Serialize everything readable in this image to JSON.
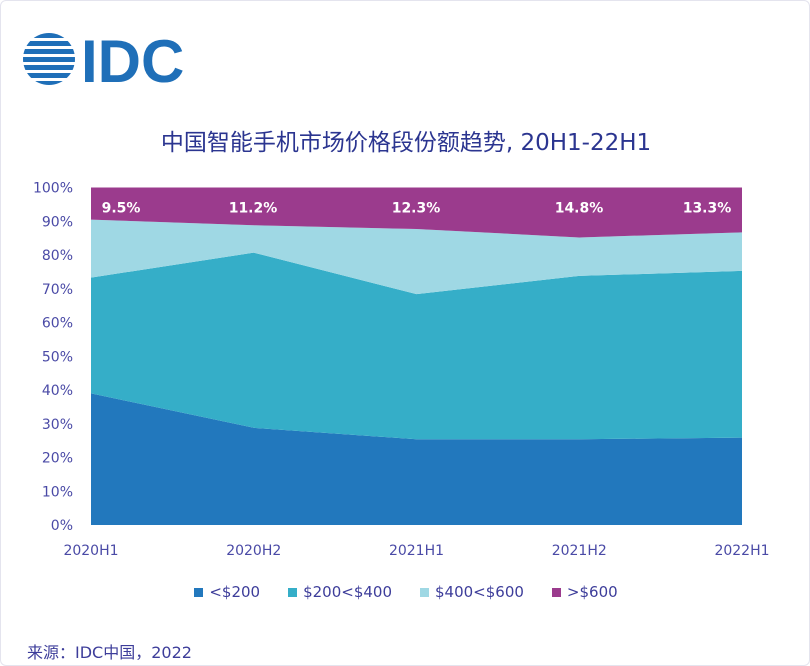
{
  "logo_text": "IDC",
  "chart_data": {
    "type": "area",
    "stacked": true,
    "title": "中国智能手机市场价格段份额趋势, 20H1-22H1",
    "categories": [
      "2020H1",
      "2020H2",
      "2021H1",
      "2021H2",
      "2022H1"
    ],
    "ylim": [
      0,
      100
    ],
    "yticks": [
      "0%",
      "10%",
      "20%",
      "30%",
      "40%",
      "50%",
      "60%",
      "70%",
      "80%",
      "90%",
      "100%"
    ],
    "series": [
      {
        "name": "<$200",
        "color": "#2278bd",
        "values": [
          39.0,
          28.8,
          25.4,
          25.4,
          25.9
        ]
      },
      {
        "name": "$200<$400",
        "color": "#35aec8",
        "values": [
          34.3,
          51.9,
          43.0,
          48.4,
          49.4
        ]
      },
      {
        "name": "$400<$600",
        "color": "#9fd8e4",
        "values": [
          17.2,
          8.1,
          19.3,
          11.4,
          11.4
        ]
      },
      {
        "name": ">$600",
        "color": "#9b3b8d",
        "values": [
          9.5,
          11.2,
          12.3,
          14.8,
          13.3
        ]
      }
    ],
    "data_labels": [
      "9.5%",
      "11.2%",
      "12.3%",
      "14.8%",
      "13.3%"
    ],
    "legend_position": "bottom",
    "grid": false
  },
  "source": "来源：IDC中国，2022"
}
